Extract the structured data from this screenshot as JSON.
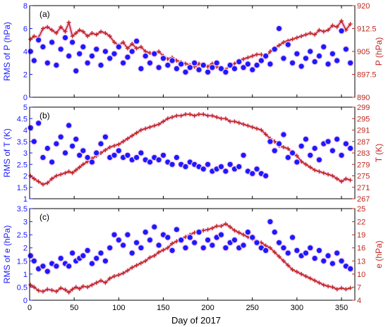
{
  "colors": {
    "left": "#1a1aff",
    "right": "#c0281e",
    "halo": "#f6c8ee",
    "frame": "#000000"
  },
  "x_label": "Day of 2017",
  "x_ticks": [
    0,
    50,
    100,
    150,
    200,
    250,
    300,
    350
  ],
  "x_range": [
    0,
    365
  ],
  "chart_data": [
    {
      "type": "scatter",
      "panel_label": "(a)",
      "ylabel_left": "RMS of P (hPa)",
      "ylabel_right": "P (hPa)",
      "ylim_left": [
        0,
        8
      ],
      "ylim_right": [
        890,
        920
      ],
      "yticks_left": [
        "0",
        "2",
        "4",
        "6",
        "8"
      ],
      "yticks_right": [
        "890",
        "897.5",
        "905",
        "912.5",
        "920"
      ],
      "left_series": {
        "name": "RMS of P",
        "marker": "filled-circle",
        "x": [
          1,
          5,
          10,
          15,
          20,
          25,
          30,
          35,
          40,
          44,
          48,
          52,
          56,
          60,
          65,
          70,
          75,
          80,
          85,
          90,
          95,
          100,
          105,
          110,
          115,
          120,
          125,
          130,
          135,
          140,
          145,
          150,
          155,
          160,
          165,
          170,
          175,
          180,
          185,
          190,
          195,
          200,
          205,
          210,
          215,
          220,
          225,
          230,
          235,
          240,
          245,
          250,
          255,
          260,
          265,
          270,
          275,
          280,
          285,
          290,
          295,
          300,
          305,
          310,
          315,
          320,
          325,
          330,
          335,
          340,
          345,
          350,
          355,
          360
        ],
        "y": [
          4.0,
          3.2,
          5.0,
          4.4,
          3.0,
          4.8,
          2.8,
          4.2,
          5.2,
          3.6,
          4.8,
          2.3,
          3.8,
          4.4,
          3.0,
          3.6,
          4.2,
          2.8,
          4.0,
          3.4,
          3.8,
          4.4,
          3.0,
          3.5,
          4.0,
          4.9,
          2.5,
          3.6,
          3.0,
          3.8,
          2.6,
          3.4,
          2.8,
          3.2,
          2.5,
          2.9,
          2.2,
          2.6,
          3.0,
          2.4,
          2.8,
          2.2,
          2.6,
          3.0,
          2.5,
          2.2,
          2.8,
          2.5,
          3.1,
          2.6,
          2.9,
          2.4,
          2.8,
          3.2,
          3.6,
          2.9,
          4.2,
          6.0,
          3.4,
          4.6,
          3.0,
          3.8,
          2.7,
          3.4,
          4.0,
          3.1,
          3.6,
          4.4,
          2.9,
          3.8,
          3.2,
          5.8,
          4.2,
          3.0
        ]
      },
      "right_series": {
        "name": "P",
        "marker": "plus-line",
        "x": [
          1,
          5,
          10,
          15,
          20,
          25,
          30,
          35,
          40,
          44,
          48,
          52,
          56,
          60,
          65,
          70,
          75,
          80,
          85,
          90,
          95,
          100,
          105,
          110,
          115,
          120,
          125,
          130,
          135,
          140,
          145,
          150,
          155,
          160,
          165,
          170,
          175,
          180,
          185,
          190,
          195,
          200,
          205,
          210,
          215,
          220,
          225,
          230,
          235,
          240,
          245,
          250,
          255,
          260,
          265,
          270,
          275,
          280,
          285,
          290,
          295,
          300,
          305,
          310,
          315,
          320,
          325,
          330,
          335,
          340,
          345,
          350,
          355,
          360
        ],
        "y": [
          909,
          910,
          909.5,
          912.5,
          913,
          912,
          911,
          913,
          911.5,
          914.5,
          910,
          911,
          912,
          911.5,
          910,
          911,
          910.5,
          911.5,
          911,
          910,
          908,
          907,
          908,
          906,
          907.5,
          906,
          906.5,
          905,
          904.5,
          904,
          905,
          903.5,
          902.5,
          903,
          902,
          901.5,
          901,
          900.5,
          900,
          901,
          900.5,
          900,
          901,
          900,
          899.5,
          899,
          900.5,
          901,
          902,
          902.5,
          903,
          903.5,
          904,
          904,
          903,
          905,
          906,
          907,
          908,
          908.5,
          909,
          909.5,
          910,
          910.5,
          911,
          910.5,
          912,
          911.5,
          912,
          913.5,
          913,
          915,
          912,
          914
        ]
      }
    },
    {
      "type": "scatter",
      "panel_label": "(b)",
      "ylabel_left": "RMS of T (K)",
      "ylabel_right": "T (K)",
      "ylim_left": [
        1,
        5
      ],
      "ylim_right": [
        267,
        299
      ],
      "yticks_left": [
        "1",
        "1.5",
        "2",
        "2.5",
        "3",
        "3.5",
        "4",
        "4.5",
        "5"
      ],
      "yticks_right": [
        "267",
        "271",
        "275",
        "279",
        "283",
        "287",
        "291",
        "295",
        "299"
      ],
      "left_series": {
        "name": "RMS of T",
        "marker": "filled-circle",
        "x": [
          1,
          5,
          10,
          15,
          20,
          25,
          30,
          35,
          40,
          44,
          48,
          52,
          56,
          60,
          65,
          70,
          75,
          80,
          85,
          90,
          95,
          100,
          105,
          110,
          115,
          120,
          125,
          130,
          135,
          140,
          145,
          150,
          155,
          160,
          165,
          170,
          175,
          180,
          185,
          190,
          195,
          200,
          205,
          210,
          215,
          220,
          225,
          230,
          235,
          240,
          245,
          250,
          255,
          260,
          265,
          270,
          275,
          280,
          285,
          290,
          295,
          300,
          305,
          310,
          315,
          320,
          325,
          330,
          335,
          340,
          345,
          350,
          355,
          360
        ],
        "y": [
          4.1,
          3.5,
          4.3,
          2.8,
          3.2,
          2.6,
          3.4,
          3.7,
          3.0,
          4.2,
          3.3,
          3.6,
          2.9,
          3.1,
          2.8,
          2.6,
          3.0,
          3.4,
          3.7,
          2.8,
          2.9,
          3.1,
          2.8,
          2.9,
          2.7,
          2.8,
          3.0,
          2.7,
          2.6,
          2.8,
          2.7,
          2.9,
          2.6,
          2.5,
          2.8,
          2.5,
          2.4,
          2.6,
          2.5,
          2.4,
          2.3,
          2.5,
          2.2,
          2.3,
          2.4,
          2.2,
          2.5,
          2.3,
          2.4,
          2.9,
          2.2,
          2.1,
          2.3,
          2.1,
          2.0,
          3.5,
          3.1,
          3.4,
          3.8,
          2.8,
          3.0,
          2.6,
          3.3,
          3.6,
          2.9,
          3.2,
          2.7,
          3.4,
          3.5,
          3.1,
          3.6,
          2.9,
          3.4,
          3.2
        ]
      },
      "right_series": {
        "name": "T",
        "marker": "plus-line",
        "x": [
          1,
          5,
          10,
          15,
          20,
          25,
          30,
          35,
          40,
          44,
          48,
          52,
          56,
          60,
          65,
          70,
          75,
          80,
          85,
          90,
          95,
          100,
          105,
          110,
          115,
          120,
          125,
          130,
          135,
          140,
          145,
          150,
          155,
          160,
          165,
          170,
          175,
          180,
          185,
          190,
          195,
          200,
          205,
          210,
          215,
          220,
          225,
          230,
          235,
          240,
          245,
          250,
          255,
          260,
          265,
          270,
          275,
          280,
          285,
          290,
          295,
          300,
          305,
          310,
          315,
          320,
          325,
          330,
          335,
          340,
          345,
          350,
          355,
          360
        ],
        "y": [
          275,
          274,
          273,
          272,
          272.5,
          274,
          275,
          275.5,
          276,
          276.5,
          276,
          277,
          278,
          279,
          280,
          281,
          282,
          283,
          284,
          285,
          285.5,
          286,
          287,
          288,
          289,
          290,
          291,
          291.5,
          292,
          292.5,
          293,
          294,
          295,
          295.5,
          296,
          296,
          296.5,
          296.5,
          296,
          296.5,
          296.5,
          296,
          296,
          295.5,
          295,
          295,
          294,
          294,
          293.5,
          293,
          292.5,
          292,
          291.5,
          291,
          289.5,
          288,
          287,
          285.5,
          285,
          284.5,
          283,
          282,
          280,
          279,
          278,
          277,
          276.5,
          276,
          275.5,
          275,
          274,
          273,
          274,
          273.5
        ]
      }
    },
    {
      "type": "scatter",
      "panel_label": "(c)",
      "ylabel_left": "RMS of e (hPa)",
      "ylabel_right": "e (hPa)",
      "ylim_left": [
        0,
        3.5
      ],
      "ylim_right": [
        4,
        25
      ],
      "yticks_left": [
        "0",
        "0.5",
        "1",
        "1.5",
        "2",
        "2.5",
        "3",
        "3.5"
      ],
      "yticks_right": [
        "4",
        "7",
        "10",
        "13",
        "16",
        "19",
        "22",
        "25"
      ],
      "left_series": {
        "name": "RMS of e",
        "marker": "filled-circle",
        "x": [
          1,
          5,
          10,
          15,
          20,
          25,
          30,
          35,
          40,
          44,
          48,
          52,
          56,
          60,
          65,
          70,
          75,
          80,
          85,
          90,
          95,
          100,
          105,
          110,
          115,
          120,
          125,
          130,
          135,
          140,
          145,
          150,
          155,
          160,
          165,
          170,
          175,
          180,
          185,
          190,
          195,
          200,
          205,
          210,
          215,
          220,
          225,
          230,
          235,
          240,
          245,
          250,
          255,
          260,
          265,
          270,
          275,
          280,
          285,
          290,
          295,
          300,
          305,
          310,
          315,
          320,
          325,
          330,
          335,
          340,
          345,
          350,
          355,
          360
        ],
        "y": [
          1.7,
          1.5,
          1.2,
          1.3,
          1.1,
          1.4,
          1.3,
          1.6,
          1.4,
          1.3,
          1.8,
          1.5,
          1.6,
          1.7,
          1.9,
          1.4,
          1.6,
          1.8,
          1.5,
          2.0,
          2.5,
          2.3,
          2.1,
          2.5,
          1.8,
          2.2,
          2.0,
          2.6,
          2.3,
          2.8,
          2.1,
          2.5,
          2.4,
          1.9,
          2.7,
          2.3,
          2.0,
          2.4,
          2.2,
          2.6,
          2.0,
          2.3,
          2.1,
          2.4,
          2.5,
          2.0,
          2.2,
          2.3,
          2.0,
          2.1,
          2.6,
          2.4,
          2.2,
          2.0,
          1.9,
          3.0,
          2.6,
          2.2,
          2.0,
          1.8,
          2.4,
          1.9,
          1.7,
          1.8,
          2.0,
          1.6,
          1.9,
          1.5,
          1.7,
          1.4,
          1.8,
          1.5,
          1.3,
          1.2
        ]
      },
      "right_series": {
        "name": "e",
        "marker": "plus-line",
        "x": [
          1,
          5,
          10,
          15,
          20,
          25,
          30,
          35,
          40,
          44,
          48,
          52,
          56,
          60,
          65,
          70,
          75,
          80,
          85,
          90,
          95,
          100,
          105,
          110,
          115,
          120,
          125,
          130,
          135,
          140,
          145,
          150,
          155,
          160,
          165,
          170,
          175,
          180,
          185,
          190,
          195,
          200,
          205,
          210,
          215,
          220,
          225,
          230,
          235,
          240,
          245,
          250,
          255,
          260,
          265,
          270,
          275,
          280,
          285,
          290,
          295,
          300,
          305,
          310,
          315,
          320,
          325,
          330,
          335,
          340,
          345,
          350,
          355,
          360
        ],
        "y": [
          7.5,
          7.0,
          6.2,
          6.0,
          6.5,
          6.3,
          6.0,
          6.8,
          6.4,
          5.8,
          6.5,
          7.0,
          6.6,
          7.2,
          7.0,
          7.5,
          8.0,
          8.5,
          8.0,
          9.0,
          9.5,
          9.8,
          10.2,
          10.8,
          11.5,
          12.0,
          12.5,
          13.0,
          13.8,
          14.2,
          15.0,
          15.5,
          16.0,
          17.0,
          17.5,
          18.0,
          18.5,
          19.0,
          19.5,
          19.8,
          20.0,
          20.2,
          20.5,
          21.0,
          21.0,
          21.5,
          20.8,
          20.0,
          19.5,
          19.0,
          18.5,
          18.0,
          17.5,
          17.2,
          16.5,
          16.0,
          15.0,
          14.0,
          13.0,
          12.0,
          11.0,
          10.5,
          10.0,
          9.5,
          9.0,
          8.5,
          8.0,
          7.5,
          7.2,
          7.0,
          6.5,
          6.8,
          6.5,
          6.8
        ]
      }
    }
  ]
}
